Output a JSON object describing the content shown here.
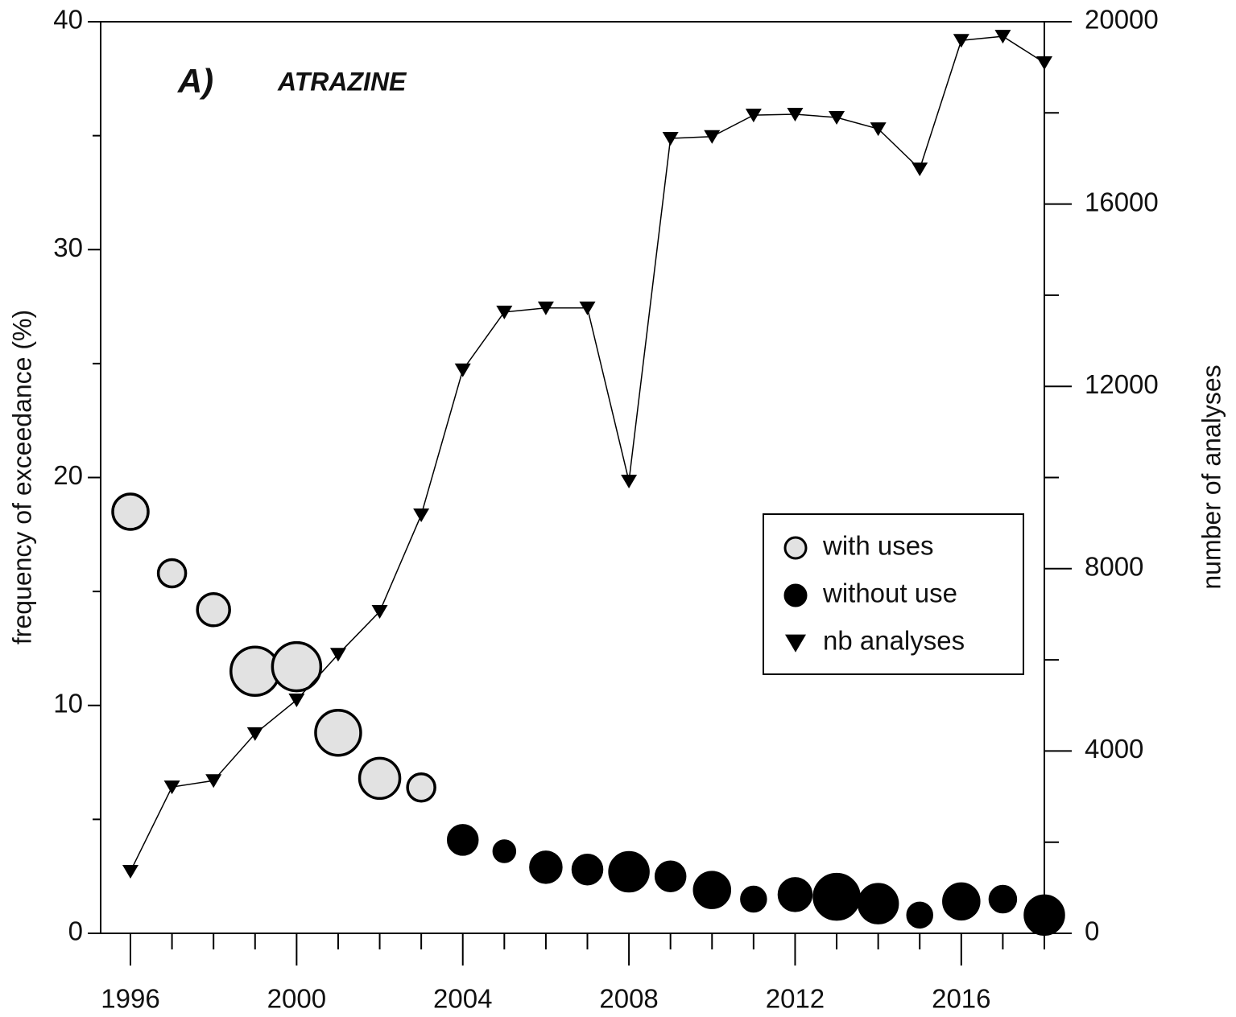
{
  "chart_data": {
    "type": "scatter",
    "panel_label": "A)",
    "title": "ATRAZINE",
    "y_label": "frequency of exceedance (%)",
    "y2_label": "number of analyses",
    "x": [
      1996,
      1997,
      1998,
      1999,
      2000,
      2001,
      2002,
      2003,
      2004,
      2005,
      2006,
      2007,
      2008,
      2009,
      2010,
      2011,
      2012,
      2013,
      2014,
      2015,
      2016,
      2017,
      2018
    ],
    "xlim": [
      1996,
      2018
    ],
    "xticks": [
      1996,
      2000,
      2004,
      2008,
      2012,
      2016
    ],
    "xminorticks": [
      1997,
      1998,
      1999,
      2001,
      2002,
      2003,
      2005,
      2006,
      2007,
      2009,
      2010,
      2011,
      2013,
      2014,
      2015,
      2017,
      2018
    ],
    "ylim": [
      0,
      40
    ],
    "yticks": [
      0,
      10,
      20,
      30,
      40
    ],
    "yminorticks": [
      5,
      15,
      25,
      35
    ],
    "y2lim": [
      0,
      20000
    ],
    "y2ticks": [
      0,
      4000,
      8000,
      12000,
      16000,
      20000
    ],
    "y2minorticks": [
      2000,
      6000,
      10000,
      14000,
      18000
    ],
    "series": [
      {
        "name": "with uses",
        "color": "#e2e2e2",
        "marker": "circle",
        "values": [
          18.5,
          15.8,
          14.2,
          11.5,
          11.7,
          8.8,
          6.8,
          6.4,
          null,
          null,
          null,
          null,
          null,
          null,
          null,
          null,
          null,
          null,
          null,
          null,
          null,
          null,
          null
        ],
        "sizes": [
          22,
          17,
          20,
          30,
          30,
          28,
          25,
          17,
          null,
          null,
          null,
          null,
          null,
          null,
          null,
          null,
          null,
          null,
          null,
          null,
          null,
          null,
          null
        ]
      },
      {
        "name": "without use",
        "color": "#000000",
        "marker": "circle",
        "values": [
          null,
          null,
          null,
          null,
          null,
          null,
          null,
          null,
          4.1,
          3.6,
          2.9,
          2.8,
          2.7,
          2.5,
          1.9,
          1.5,
          1.7,
          1.6,
          1.3,
          0.8,
          1.4,
          1.5,
          0.8
        ],
        "sizes": [
          null,
          null,
          null,
          null,
          null,
          null,
          null,
          null,
          18,
          13,
          19,
          18,
          24,
          18,
          22,
          15,
          20,
          28,
          24,
          15,
          22,
          16,
          24
        ]
      },
      {
        "name": "nb analyses",
        "color": "#000000",
        "marker": "triangle-down",
        "axis": "y2",
        "values": [
          1360,
          3210,
          3350,
          4380,
          5120,
          6120,
          7060,
          9180,
          12360,
          13630,
          13720,
          13720,
          9920,
          17440,
          17480,
          17950,
          17970,
          17900,
          17650,
          16770,
          19590,
          19680,
          19100
        ]
      }
    ]
  }
}
